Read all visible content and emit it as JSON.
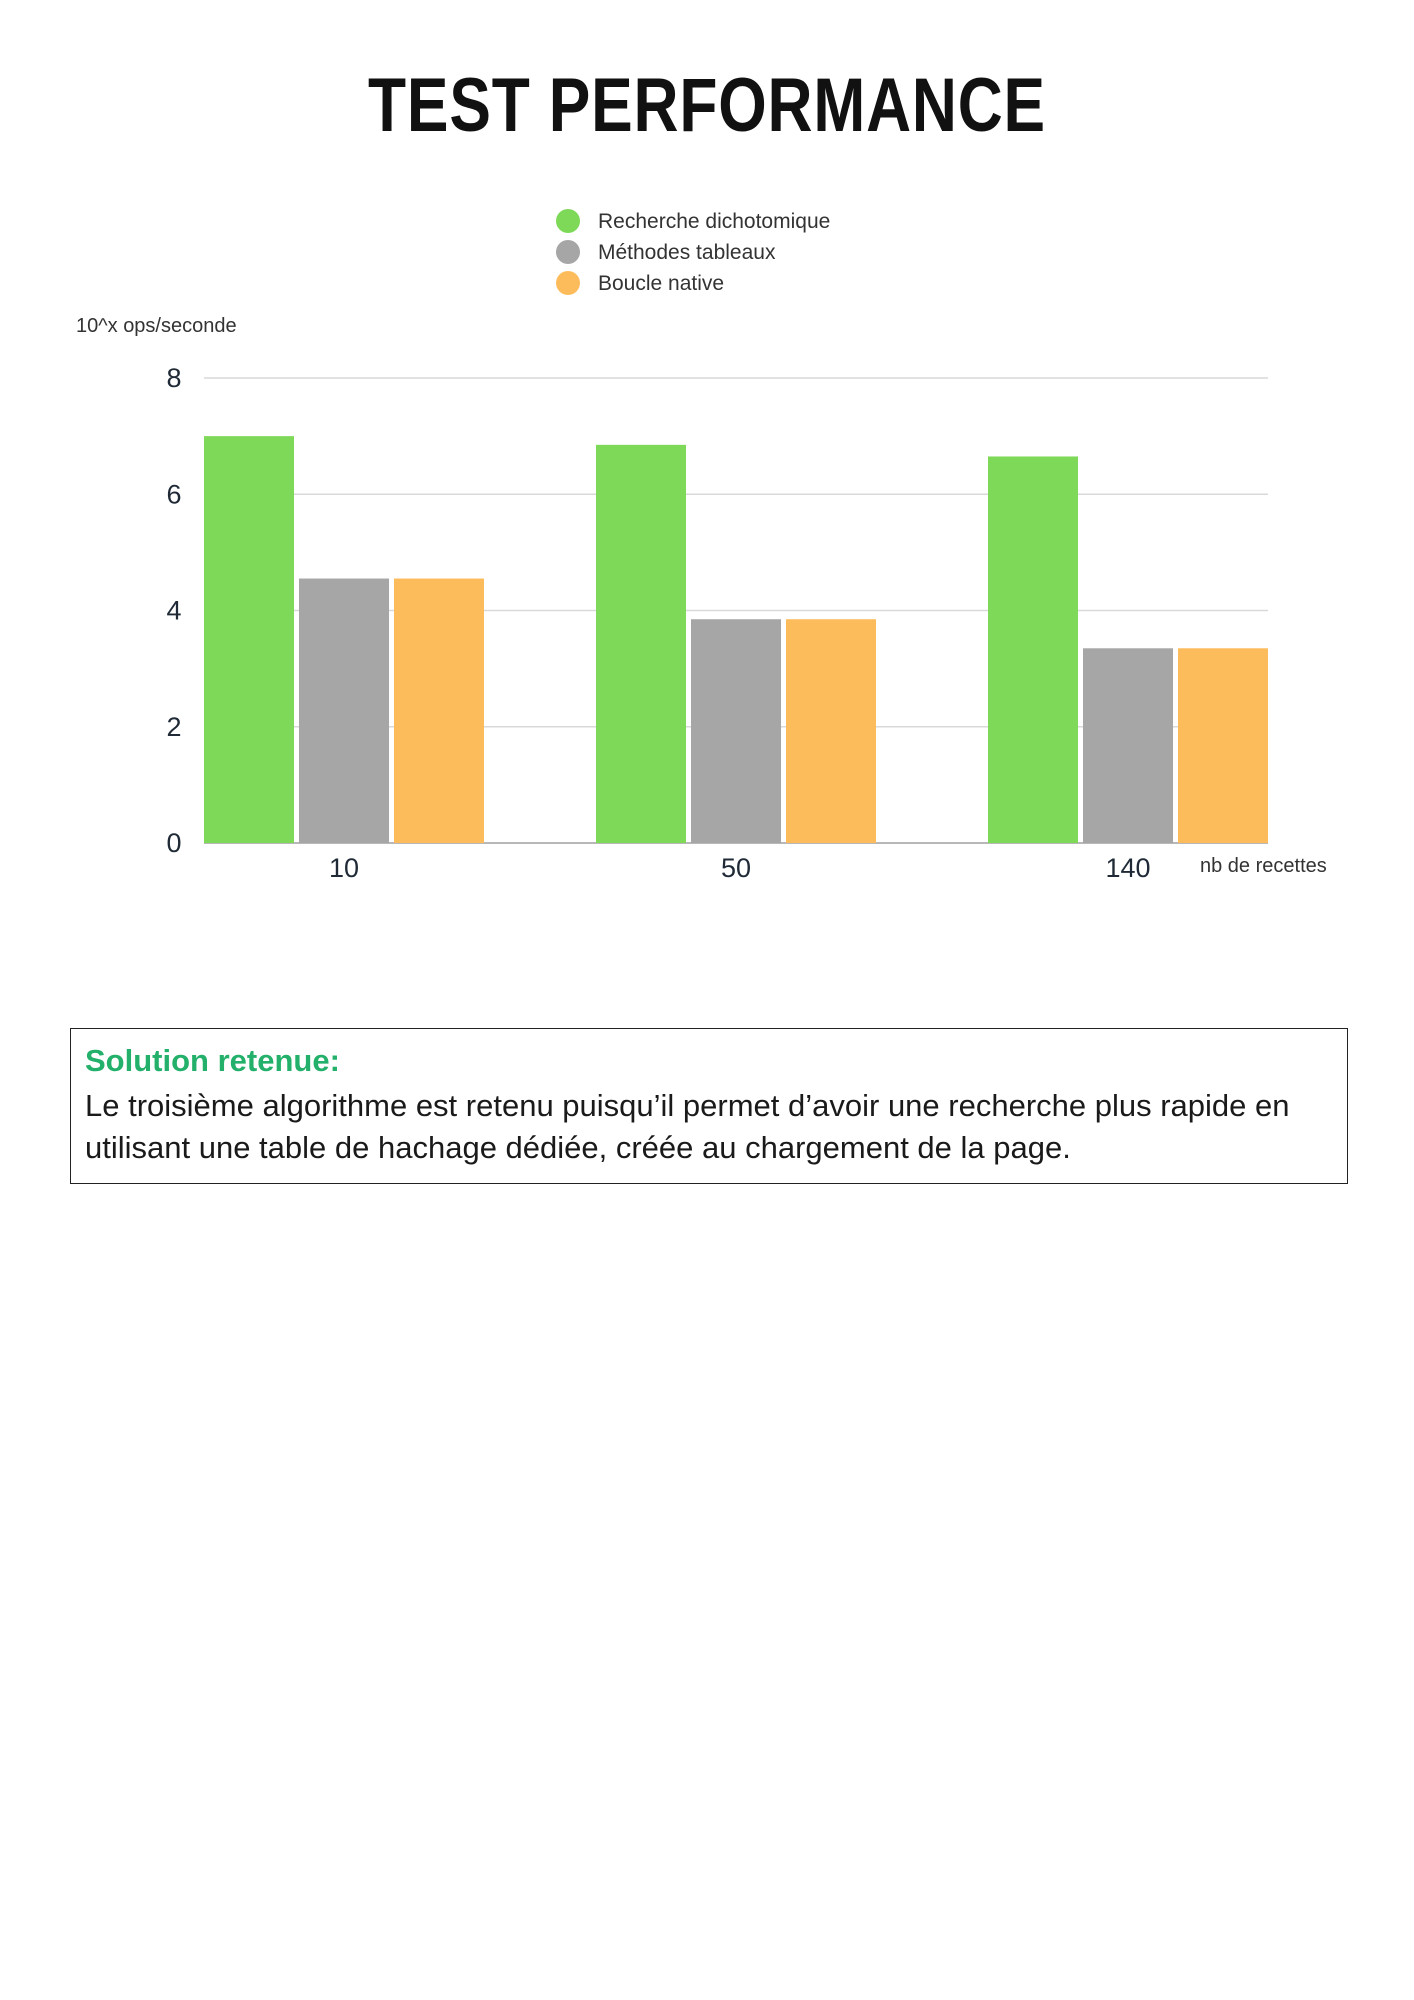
{
  "page": {
    "title": "TEST PERFORMANCE"
  },
  "chart_data": {
    "type": "bar",
    "title": "",
    "ylabel": "10^x ops/seconde",
    "xlabel": "nb de recettes",
    "categories": [
      "10",
      "50",
      "140"
    ],
    "series": [
      {
        "name": "Recherche dichotomique",
        "values": [
          7.0,
          6.85,
          6.65
        ],
        "color": "#7dd957"
      },
      {
        "name": "Méthodes tableaux",
        "values": [
          4.55,
          3.85,
          3.35
        ],
        "color": "#a6a6a6"
      },
      {
        "name": "Boucle native",
        "values": [
          4.55,
          3.85,
          3.35
        ],
        "color": "#fdbc5b"
      }
    ],
    "ylim": [
      0,
      8
    ],
    "yticks": [
      "0",
      "2",
      "4",
      "6",
      "8"
    ],
    "grid": true,
    "legend_position": "top-center"
  },
  "solution": {
    "heading": "Solution retenue:",
    "text": "Le troisième algorithme est retenu puisqu’il permet d’avoir une recherche plus rapide en utilisant une table de hachage dédiée, créée au chargement de la page."
  }
}
